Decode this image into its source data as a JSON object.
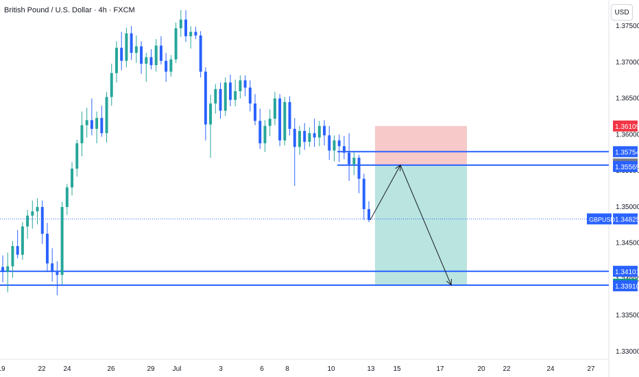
{
  "header": {
    "title": "British Pound / U.S. Dollar · 4h · FXCM",
    "currency": "USD"
  },
  "colors": {
    "up": "#26a69a",
    "down": "#2962ff",
    "line": "#2962ff",
    "stop_zone": "#f7c9c9",
    "target_zone": "#b9e4e0",
    "label_red": "#f23645",
    "label_gray": "#787b86",
    "label_blue": "#2962ff",
    "label_green": "#089981"
  },
  "chart_data": {
    "type": "candlestick",
    "y_axis_labels": [
      "1.37500",
      "1.37000",
      "1.36500",
      "1.36000",
      "1.35500",
      "1.35000",
      "1.34500",
      "1.34000",
      "1.33500",
      "1.33000"
    ],
    "y_ticks": [
      1.375,
      1.37,
      1.365,
      1.36,
      1.355,
      1.35,
      1.345,
      1.34,
      1.335,
      1.33
    ],
    "x_axis_labels": [
      "19",
      "22",
      "24",
      "26",
      "29",
      "Jul",
      "3",
      "6",
      "8",
      "10",
      "13",
      "15",
      "17",
      "20",
      "22",
      "24",
      "27"
    ],
    "ylim": [
      1.33,
      1.377
    ],
    "price_labels": [
      {
        "name": "stop",
        "text": "1.36109",
        "value": 1.36109,
        "color": "#f23645"
      },
      {
        "name": "level-upper-line",
        "text": "1.35754",
        "value": 1.35754,
        "color": "#2962ff"
      },
      {
        "name": "entry-level",
        "text": "1.35574",
        "value": 1.35574,
        "color": "#787b86"
      },
      {
        "name": "level-lower-line",
        "text": "1.35569",
        "value": 1.35569,
        "color": "#2962ff"
      },
      {
        "name": "last-price",
        "text": "1.34825",
        "value": 1.34825,
        "color": "#2962ff",
        "tag": "GBPUSD"
      },
      {
        "name": "support-upper",
        "text": "1.34101",
        "value": 1.34101,
        "color": "#2962ff"
      },
      {
        "name": "target",
        "text": "1.33913",
        "value": 1.33913,
        "color": "#089981"
      },
      {
        "name": "support-lower",
        "text": "1.33910",
        "value": 1.3391,
        "color": "#2962ff"
      }
    ],
    "horizontal_levels": [
      1.35754,
      1.35569,
      1.34101,
      1.3391
    ],
    "last_price": 1.34825,
    "position": {
      "entry": 1.35574,
      "stop": 1.36109,
      "target": 1.33913
    },
    "projection_path": [
      1.3481,
      1.3557,
      1.3391
    ],
    "ohlc": [
      [
        1.3416,
        1.3432,
        1.3395,
        1.3409
      ],
      [
        1.3409,
        1.3436,
        1.3381,
        1.3417
      ],
      [
        1.3417,
        1.3452,
        1.3401,
        1.3445
      ],
      [
        1.3445,
        1.3467,
        1.3428,
        1.3433
      ],
      [
        1.3433,
        1.3478,
        1.3426,
        1.3472
      ],
      [
        1.3472,
        1.3495,
        1.3455,
        1.3487
      ],
      [
        1.3487,
        1.3508,
        1.3469,
        1.3493
      ],
      [
        1.3493,
        1.3511,
        1.3475,
        1.3499
      ],
      [
        1.3499,
        1.3508,
        1.3448,
        1.3462
      ],
      [
        1.3462,
        1.3477,
        1.3409,
        1.3421
      ],
      [
        1.3421,
        1.3442,
        1.3396,
        1.3409
      ],
      [
        1.3409,
        1.3424,
        1.3377,
        1.3405
      ],
      [
        1.3405,
        1.3506,
        1.3392,
        1.3499
      ],
      [
        1.3499,
        1.3531,
        1.3488,
        1.3526
      ],
      [
        1.3526,
        1.3561,
        1.3515,
        1.3552
      ],
      [
        1.3552,
        1.3592,
        1.3541,
        1.3587
      ],
      [
        1.3587,
        1.3631,
        1.3569,
        1.3612
      ],
      [
        1.3612,
        1.3636,
        1.3595,
        1.3619
      ],
      [
        1.3619,
        1.3649,
        1.3598,
        1.3607
      ],
      [
        1.3607,
        1.3631,
        1.3587,
        1.3622
      ],
      [
        1.3622,
        1.3639,
        1.3596,
        1.3601
      ],
      [
        1.3601,
        1.3658,
        1.3588,
        1.3651
      ],
      [
        1.3651,
        1.3697,
        1.3639,
        1.3684
      ],
      [
        1.3684,
        1.3728,
        1.3671,
        1.3719
      ],
      [
        1.3719,
        1.3741,
        1.3688,
        1.3701
      ],
      [
        1.3701,
        1.3747,
        1.3692,
        1.3739
      ],
      [
        1.3739,
        1.3749,
        1.3702,
        1.3712
      ],
      [
        1.3712,
        1.3736,
        1.3698,
        1.3721
      ],
      [
        1.3721,
        1.3728,
        1.3683,
        1.3697
      ],
      [
        1.3697,
        1.3712,
        1.3672,
        1.3706
      ],
      [
        1.3706,
        1.3717,
        1.3689,
        1.3695
      ],
      [
        1.3695,
        1.3731,
        1.3686,
        1.3722
      ],
      [
        1.3722,
        1.3735,
        1.3696,
        1.3701
      ],
      [
        1.3701,
        1.3712,
        1.3672,
        1.3686
      ],
      [
        1.3686,
        1.3709,
        1.3679,
        1.3703
      ],
      [
        1.3703,
        1.3754,
        1.3698,
        1.3746
      ],
      [
        1.3746,
        1.3771,
        1.3734,
        1.3758
      ],
      [
        1.3758,
        1.3771,
        1.3727,
        1.3735
      ],
      [
        1.3735,
        1.3749,
        1.3718,
        1.3741
      ],
      [
        1.3741,
        1.3748,
        1.3731,
        1.3736
      ],
      [
        1.3736,
        1.3742,
        1.3678,
        1.3686
      ],
      [
        1.3686,
        1.3692,
        1.3591,
        1.3613
      ],
      [
        1.3613,
        1.3654,
        1.3567,
        1.3642
      ],
      [
        1.3642,
        1.3669,
        1.3628,
        1.3662
      ],
      [
        1.3662,
        1.3671,
        1.3621,
        1.3632
      ],
      [
        1.3632,
        1.3678,
        1.3625,
        1.3671
      ],
      [
        1.3671,
        1.3682,
        1.3638,
        1.3647
      ],
      [
        1.3647,
        1.3675,
        1.3638,
        1.3659
      ],
      [
        1.3659,
        1.3681,
        1.3649,
        1.3674
      ],
      [
        1.3674,
        1.3681,
        1.3652,
        1.3664
      ],
      [
        1.3664,
        1.3674,
        1.3631,
        1.3642
      ],
      [
        1.3642,
        1.3655,
        1.3612,
        1.3618
      ],
      [
        1.3618,
        1.3635,
        1.3579,
        1.3587
      ],
      [
        1.3587,
        1.3619,
        1.3575,
        1.3611
      ],
      [
        1.3611,
        1.3634,
        1.3597,
        1.3621
      ],
      [
        1.3621,
        1.3658,
        1.3612,
        1.3649
      ],
      [
        1.3649,
        1.3655,
        1.3583,
        1.3591
      ],
      [
        1.3591,
        1.3651,
        1.3584,
        1.3644
      ],
      [
        1.3644,
        1.3652,
        1.3598,
        1.3607
      ],
      [
        1.3607,
        1.3622,
        1.3528,
        1.3582
      ],
      [
        1.3582,
        1.3611,
        1.3571,
        1.3604
      ],
      [
        1.3604,
        1.3615,
        1.3578,
        1.3589
      ],
      [
        1.3589,
        1.3609,
        1.3582,
        1.3601
      ],
      [
        1.3601,
        1.3621,
        1.3582,
        1.3595
      ],
      [
        1.3595,
        1.3618,
        1.3583,
        1.3611
      ],
      [
        1.3611,
        1.3619,
        1.3584,
        1.3598
      ],
      [
        1.3598,
        1.3611,
        1.3564,
        1.3577
      ],
      [
        1.3577,
        1.3598,
        1.3562,
        1.3591
      ],
      [
        1.3591,
        1.3599,
        1.3561,
        1.3583
      ],
      [
        1.3583,
        1.3597,
        1.3565,
        1.3574
      ],
      [
        1.3574,
        1.3601,
        1.3535,
        1.3558
      ],
      [
        1.3558,
        1.3575,
        1.3543,
        1.3567
      ],
      [
        1.3567,
        1.3571,
        1.3518,
        1.3538
      ],
      [
        1.3538,
        1.3545,
        1.3481,
        1.3496
      ],
      [
        1.3496,
        1.3507,
        1.3478,
        1.3481
      ]
    ]
  }
}
